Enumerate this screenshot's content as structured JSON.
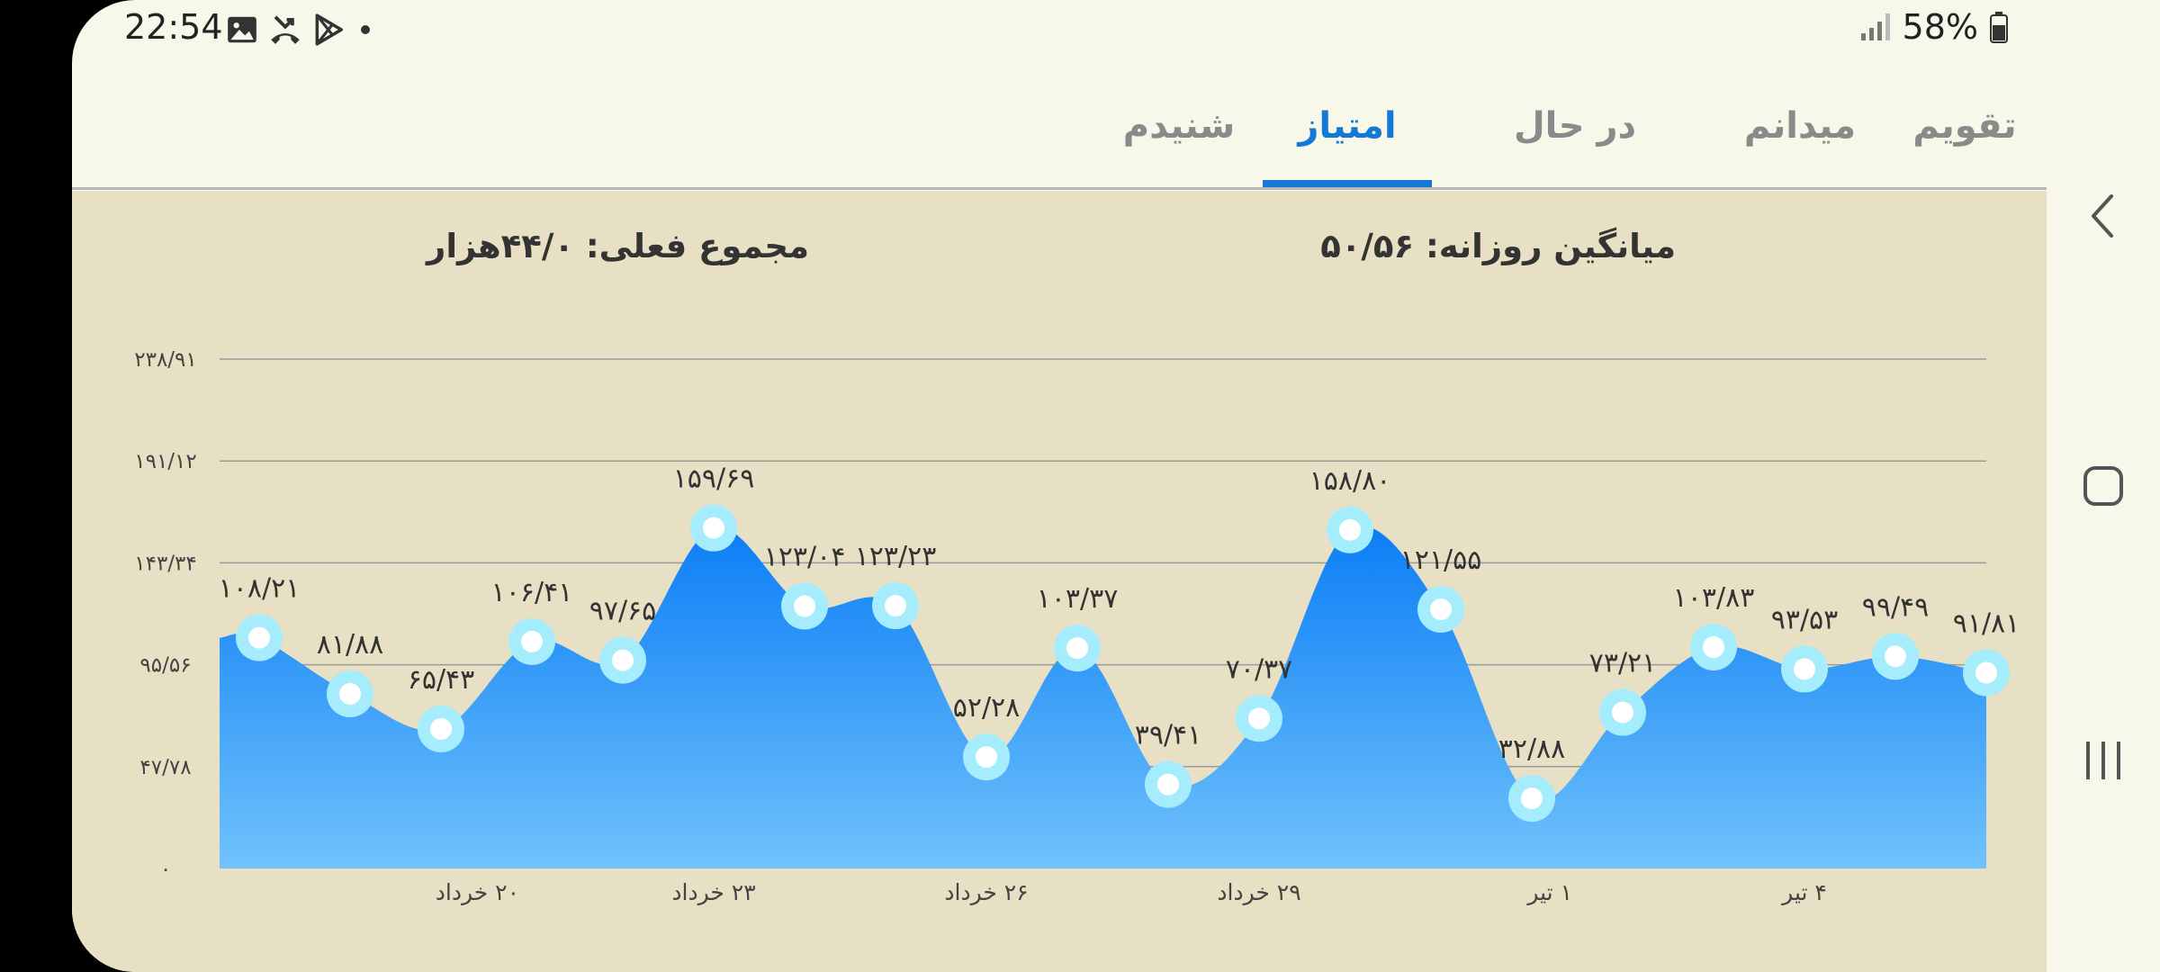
{
  "status_bar": {
    "time": "22:54",
    "notification_icons": [
      "gallery-icon",
      "missed-call-icon",
      "play-store-icon",
      "dot-icon"
    ],
    "battery_text": "58%"
  },
  "tabs": [
    {
      "label": "تقویم",
      "active": false
    },
    {
      "label": "میدانم",
      "active": false
    },
    {
      "label": "در حال یادگیری",
      "active": false
    },
    {
      "label": "امتیاز",
      "active": true
    },
    {
      "label": "شنیدم",
      "active": false
    }
  ],
  "stats": {
    "daily_average": "میانگین روزانه: ۵۰/۵۶",
    "current_total": "مجموع فعلی: ۴۴/۰هزار"
  },
  "colors": {
    "accent": "#1479d6",
    "area_top": "#0b7ef6",
    "area_bottom": "#70c2fb",
    "marker_ring": "#a5ecfc"
  },
  "chart_data": {
    "type": "area",
    "y_tick_labels": [
      "۰",
      "۴۷/۷۸",
      "۹۵/۵۶",
      "۱۴۳/۳۴",
      "۱۹۱/۱۲",
      "۲۳۸/۹۱"
    ],
    "y_ticks": [
      0,
      47.78,
      95.56,
      143.34,
      191.12,
      238.91
    ],
    "ylim": [
      0,
      238.91
    ],
    "grid": true,
    "x_tick_labels": [
      {
        "index": 2.4,
        "label": "۲۰ خرداد"
      },
      {
        "index": 5,
        "label": "۲۳ خرداد"
      },
      {
        "index": 8,
        "label": "۲۶ خرداد"
      },
      {
        "index": 11,
        "label": "۲۹ خرداد"
      },
      {
        "index": 14.2,
        "label": "۱ تیر"
      },
      {
        "index": 17,
        "label": "۴ تیر"
      }
    ],
    "values": [
      108.21,
      81.88,
      65.43,
      106.41,
      97.65,
      159.69,
      123.04,
      123.23,
      52.28,
      103.37,
      39.41,
      70.37,
      158.8,
      121.55,
      32.88,
      73.21,
      103.83,
      93.53,
      99.49,
      91.81
    ],
    "value_labels": [
      "۱۰۸/۲۱",
      "۸۱/۸۸",
      "۶۵/۴۳",
      "۱۰۶/۴۱",
      "۹۷/۶۵",
      "۱۵۹/۶۹",
      "۱۲۳/۰۴",
      "۱۲۳/۲۳",
      "۵۲/۲۸",
      "۱۰۳/۳۷",
      "۳۹/۴۱",
      "۷۰/۳۷",
      "۱۵۸/۸۰",
      "۱۲۱/۵۵",
      "۳۲/۸۸",
      "۷۳/۲۱",
      "۱۰۳/۸۳",
      "۹۳/۵۳",
      "۹۹/۴۹",
      "۹۱/۸۱"
    ]
  },
  "nav_bar": {
    "buttons": [
      "back-icon",
      "home-icon",
      "recents-icon"
    ]
  }
}
